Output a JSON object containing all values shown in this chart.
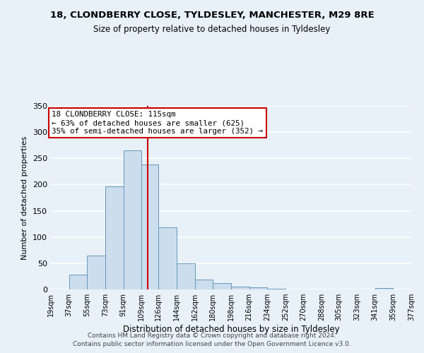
{
  "title": "18, CLONDBERRY CLOSE, TYLDESLEY, MANCHESTER, M29 8RE",
  "subtitle": "Size of property relative to detached houses in Tyldesley",
  "xlabel": "Distribution of detached houses by size in Tyldesley",
  "ylabel": "Number of detached properties",
  "bar_color": "#ccdded",
  "bar_edge_color": "#6699bb",
  "bin_edges": [
    19,
    37,
    55,
    73,
    91,
    109,
    126,
    144,
    162,
    180,
    198,
    216,
    234,
    252,
    270,
    288,
    305,
    323,
    341,
    359,
    377
  ],
  "bar_heights": [
    0,
    28,
    65,
    197,
    265,
    238,
    118,
    50,
    19,
    12,
    6,
    4,
    2,
    0,
    0,
    0,
    0,
    0,
    3,
    0,
    0
  ],
  "property_size": 115,
  "vline_color": "#cc0000",
  "annotation_line1": "18 CLONDBERRY CLOSE: 115sqm",
  "annotation_line2": "← 63% of detached houses are smaller (625)",
  "annotation_line3": "35% of semi-detached houses are larger (352) →",
  "annotation_bbox_facecolor": "#ffffff",
  "annotation_bbox_edgecolor": "#cc0000",
  "ylim": [
    0,
    350
  ],
  "yticks": [
    0,
    50,
    100,
    150,
    200,
    250,
    300,
    350
  ],
  "tick_labels": [
    "19sqm",
    "37sqm",
    "55sqm",
    "73sqm",
    "91sqm",
    "109sqm",
    "126sqm",
    "144sqm",
    "162sqm",
    "180sqm",
    "198sqm",
    "216sqm",
    "234sqm",
    "252sqm",
    "270sqm",
    "288sqm",
    "305sqm",
    "323sqm",
    "341sqm",
    "359sqm",
    "377sqm"
  ],
  "footer_line1": "Contains HM Land Registry data © Crown copyright and database right 2024.",
  "footer_line2": "Contains public sector information licensed under the Open Government Licence v3.0.",
  "background_color": "#e8f0f8",
  "grid_color": "#ffffff",
  "title_fontsize": 9.5,
  "subtitle_fontsize": 8.5,
  "ylabel_fontsize": 8,
  "xlabel_fontsize": 8.5,
  "ytick_fontsize": 8,
  "xtick_fontsize": 7,
  "footer_fontsize": 6.5
}
